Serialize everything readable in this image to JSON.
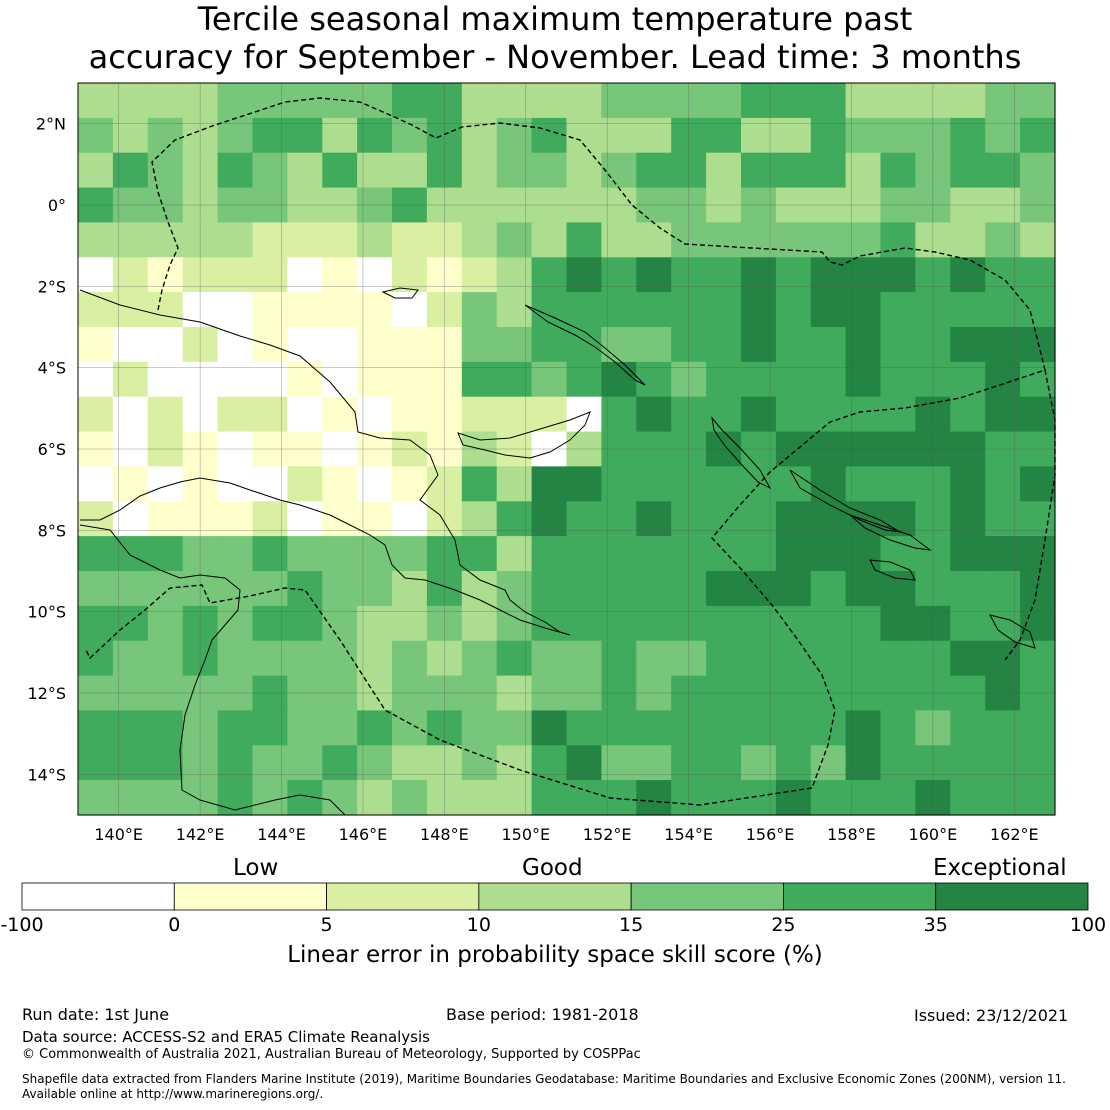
{
  "title_line1": "Tercile seasonal maximum temperature past",
  "title_line2": "accuracy for September - November. Lead time: 3 months",
  "map": {
    "lon_range": [
      139,
      163
    ],
    "lat_range": [
      -15,
      3
    ],
    "lon_ticks": [
      "140°E",
      "142°E",
      "144°E",
      "146°E",
      "148°E",
      "150°E",
      "152°E",
      "154°E",
      "156°E",
      "158°E",
      "160°E",
      "162°E"
    ],
    "lat_ticks": [
      "2°N",
      "0°",
      "2°S",
      "4°S",
      "6°S",
      "8°S",
      "10°S",
      "12°S",
      "14°S"
    ]
  },
  "colorbar": {
    "categories": [
      "Low",
      "Good",
      "Exceptional"
    ],
    "boundaries": [
      "-100",
      "0",
      "5",
      "10",
      "15",
      "25",
      "35",
      "100"
    ],
    "colors": [
      "#ffffff",
      "#ffffcc",
      "#d9f0a3",
      "#addd8e",
      "#78c679",
      "#41ab5d",
      "#238443"
    ],
    "label": "Linear error in probability space skill score (%)"
  },
  "footer": {
    "run_date": "Run date: 1st June",
    "base_period": "Base period: 1981-2018",
    "issued": "Issued: 23/12/2021",
    "data_source": "Data source: ACCESS-S2 and ERA5 Climate Reanalysis",
    "copyright": "© Commonwealth of Australia 2021, Australian Bureau of Meteorology, Supported by COSPPac",
    "shapefile_line1": "Shapefile data extracted from Flanders Marine Institute (2019), Maritime Boundaries Geodatabase: Maritime Boundaries and Exclusive Economic Zones (200NM), version 11.",
    "shapefile_line2": "Available online at http://www.marineregions.org/."
  }
}
